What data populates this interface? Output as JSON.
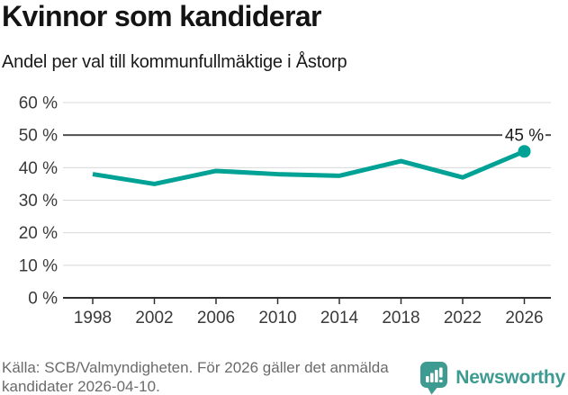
{
  "header": {
    "title": "Kvinnor som kandiderar",
    "subtitle": "Andel per val till kommunfullmäktige i Åstorp"
  },
  "chart_data": {
    "type": "line",
    "title": "Kvinnor som kandiderar",
    "subtitle": "Andel per val till kommunfullmäktige i Åstorp",
    "x": [
      "1998",
      "2002",
      "2006",
      "2010",
      "2014",
      "2018",
      "2022",
      "2026"
    ],
    "series": [
      {
        "values": [
          38,
          35,
          39,
          38,
          37.5,
          42,
          37,
          45
        ]
      }
    ],
    "ylim": [
      0,
      60
    ],
    "ytick_step": 10,
    "ytick_suffix": " %",
    "grid": true,
    "emphasized_gridline": 50,
    "end_label": "45 %",
    "marker_on_last_point": true,
    "line_color": "#00a295"
  },
  "footer": {
    "source_line1": "Källa: SCB/Valmyndigheten. För 2026 gäller det anmälda",
    "source_line2": "kandidater 2026-04-10.",
    "brand": "Newsworthy"
  },
  "colors": {
    "accent": "#00a295",
    "brand": "#3e9b92",
    "grid_light": "#d8d8d8",
    "grid_emphasized": "#4f4f4f",
    "axis": "#2e2e2e",
    "tick_text": "#3a3a3a",
    "annotation_text": "#1a1a1a"
  }
}
